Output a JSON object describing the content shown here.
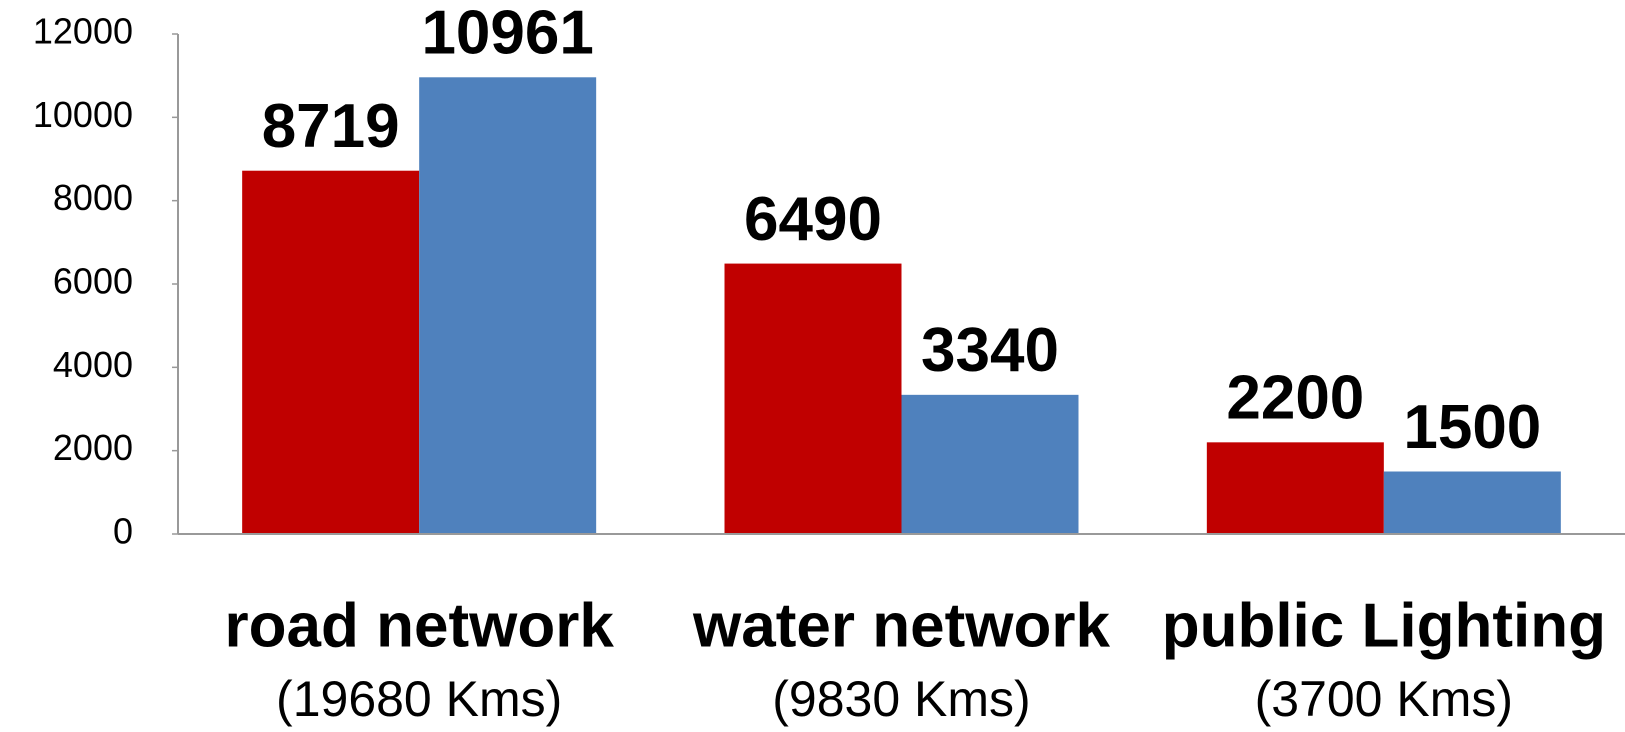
{
  "chart_data": {
    "type": "bar",
    "categories": [
      "road network",
      "water network",
      "public Lighting"
    ],
    "category_subtitles": [
      "(19680 Kms)",
      "(9830 Kms)",
      "(3700 Kms)"
    ],
    "series": [
      {
        "color": "#c00000",
        "values": [
          8719,
          6490,
          2200
        ]
      },
      {
        "color": "#4f81bd",
        "values": [
          10961,
          3340,
          1500
        ]
      }
    ],
    "ylim": [
      0,
      12000
    ],
    "yticks": [
      0,
      2000,
      4000,
      6000,
      8000,
      10000,
      12000
    ],
    "grid": false
  }
}
